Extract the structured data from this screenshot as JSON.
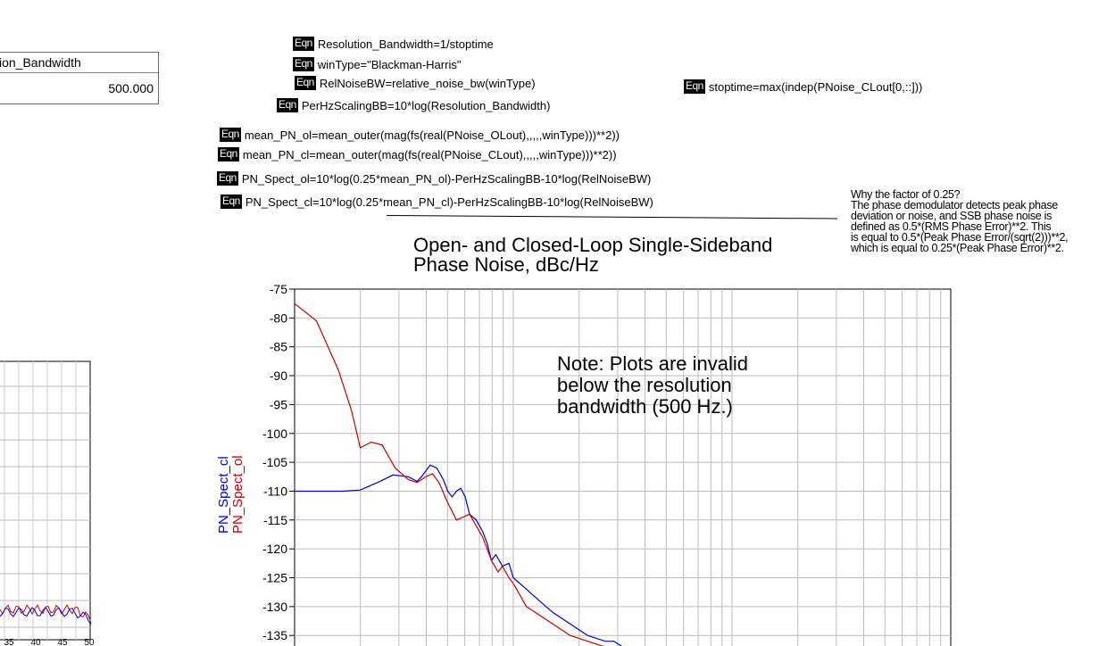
{
  "equations": [
    {
      "id": "eq-resolution-bandwidth",
      "icon": "Eqn",
      "text": "Resolution_Bandwidth=1/stoptime"
    },
    {
      "id": "eq-wintype",
      "icon": "Eqn",
      "text": "winType=\"Blackman-Harris\""
    },
    {
      "id": "eq-relnoisebw",
      "icon": "Eqn",
      "text": "RelNoiseBW=relative_noise_bw(winType)"
    },
    {
      "id": "eq-stoptime",
      "icon": "Eqn",
      "text": "stoptime=max(indep(PNoise_CLout[0,::]))"
    },
    {
      "id": "eq-perhzscaling",
      "icon": "Eqn",
      "text": "PerHzScalingBB=10*log(Resolution_Bandwidth)"
    },
    {
      "id": "eq-mean-pn-ol",
      "icon": "Eqn",
      "text": "mean_PN_ol=mean_outer(mag(fs(real(PNoise_OLout),,,,,winType)))**2))"
    },
    {
      "id": "eq-mean-pn-cl",
      "icon": "Eqn",
      "text": "mean_PN_cl=mean_outer(mag(fs(real(PNoise_CLout),,,,,winType)))**2))"
    },
    {
      "id": "eq-pn-spect-ol",
      "icon": "Eqn",
      "text": "PN_Spect_ol=10*log(0.25*mean_PN_ol)-PerHzScalingBB-10*log(RelNoiseBW)"
    },
    {
      "id": "eq-pn-spect-cl",
      "icon": "Eqn",
      "text": "PN_Spect_cl=10*log(0.25*mean_PN_cl)-PerHzScalingBB-10*log(RelNoiseBW)"
    }
  ],
  "listing_table": {
    "header": "ion_Bandwidth",
    "value": "500.000"
  },
  "annotation": {
    "lines": [
      "Why the factor of 0.25?",
      "The phase demodulator detects peak phase",
      "deviation or noise, and SSB phase noise is",
      "defined as 0.5*(RMS Phase Error)**2. This",
      "is equal to 0.5*(Peak Phase Error/(sqrt(2)))**2,",
      "which is equal to 0.25*(Peak Phase Error)**2."
    ]
  },
  "left_plot": {
    "x_ticks": [
      "35",
      "40",
      "45",
      "50"
    ]
  },
  "chart_data": {
    "type": "line",
    "title": "Open- and Closed-Loop Single-Sideband Phase Noise, dBc/Hz",
    "title_lines": [
      "Open- and Closed-Loop Single-Sideband",
      "Phase Noise, dBc/Hz"
    ],
    "note_lines": [
      "Note: Plots are invalid",
      "below the resolution",
      "bandwidth (500 Hz.)"
    ],
    "ylabel_series": [
      "PN_Spect_cl",
      "PN_Spect_ol"
    ],
    "y_ticks": [
      "-75",
      "-80",
      "-85",
      "-90",
      "-95",
      "-100",
      "-105",
      "-110",
      "-115",
      "-120",
      "-125",
      "-130",
      "-135"
    ],
    "ylim": [
      -138,
      -75
    ],
    "x_scale": "log",
    "grid": true,
    "series": [
      {
        "name": "PN_Spect_cl",
        "color": "#0000cc",
        "points": [
          [
            0,
            -110
          ],
          [
            0.1,
            -110
          ],
          [
            0.22,
            -110
          ],
          [
            0.3,
            -109.8
          ],
          [
            0.38,
            -108.5
          ],
          [
            0.45,
            -107.2
          ],
          [
            0.52,
            -107.5
          ],
          [
            0.56,
            -108.3
          ],
          [
            0.58,
            -107.5
          ],
          [
            0.62,
            -105.5
          ],
          [
            0.65,
            -106
          ],
          [
            0.68,
            -108
          ],
          [
            0.7,
            -110
          ],
          [
            0.72,
            -111
          ],
          [
            0.74,
            -110
          ],
          [
            0.76,
            -109.5
          ],
          [
            0.78,
            -111
          ],
          [
            0.8,
            -114
          ],
          [
            0.83,
            -115
          ],
          [
            0.86,
            -117
          ],
          [
            0.88,
            -119
          ],
          [
            0.9,
            -122
          ],
          [
            0.92,
            -121
          ],
          [
            0.95,
            -123
          ],
          [
            0.98,
            -122.5
          ],
          [
            1.0,
            -125
          ],
          [
            1.03,
            -126
          ],
          [
            1.06,
            -127
          ],
          [
            1.09,
            -128
          ],
          [
            1.12,
            -129
          ],
          [
            1.15,
            -130
          ],
          [
            1.18,
            -131
          ],
          [
            1.22,
            -132
          ],
          [
            1.26,
            -133
          ],
          [
            1.3,
            -134
          ],
          [
            1.34,
            -135
          ],
          [
            1.38,
            -135.5
          ],
          [
            1.42,
            -136
          ],
          [
            1.46,
            -136
          ],
          [
            1.5,
            -137
          ]
        ]
      },
      {
        "name": "PN_Spect_ol",
        "color": "#cc0000",
        "points": [
          [
            0,
            -77.5
          ],
          [
            0.1,
            -80.5
          ],
          [
            0.2,
            -89
          ],
          [
            0.26,
            -96
          ],
          [
            0.3,
            -102.5
          ],
          [
            0.35,
            -101.5
          ],
          [
            0.4,
            -102
          ],
          [
            0.46,
            -106
          ],
          [
            0.52,
            -108
          ],
          [
            0.56,
            -108.5
          ],
          [
            0.6,
            -107.5
          ],
          [
            0.63,
            -107
          ],
          [
            0.66,
            -108.5
          ],
          [
            0.7,
            -112
          ],
          [
            0.74,
            -115
          ],
          [
            0.77,
            -114.5
          ],
          [
            0.8,
            -114
          ],
          [
            0.83,
            -116
          ],
          [
            0.86,
            -118
          ],
          [
            0.9,
            -122
          ],
          [
            0.93,
            -124
          ],
          [
            0.95,
            -123
          ],
          [
            0.98,
            -125
          ],
          [
            1.0,
            -126
          ],
          [
            1.03,
            -128
          ],
          [
            1.06,
            -130
          ],
          [
            1.1,
            -131
          ],
          [
            1.14,
            -132
          ],
          [
            1.18,
            -133
          ],
          [
            1.22,
            -134
          ],
          [
            1.26,
            -135
          ],
          [
            1.3,
            -135.5
          ],
          [
            1.34,
            -136
          ],
          [
            1.38,
            -136.5
          ],
          [
            1.42,
            -137
          ],
          [
            1.46,
            -137
          ],
          [
            1.5,
            -137.5
          ]
        ]
      }
    ]
  }
}
